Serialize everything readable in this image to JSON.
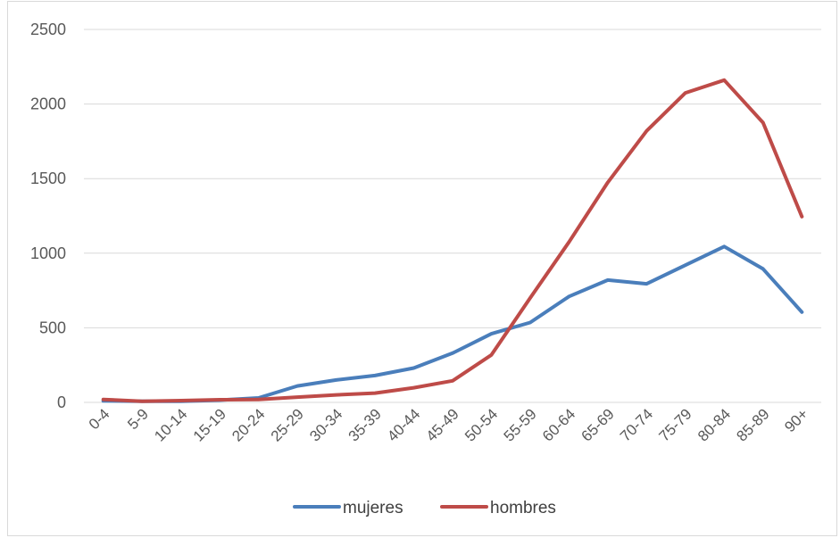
{
  "chart_data": {
    "type": "line",
    "title": "",
    "xlabel": "",
    "ylabel": "",
    "ylim": [
      0,
      2500
    ],
    "yticks": [
      0,
      500,
      1000,
      1500,
      2000,
      2500
    ],
    "grid": true,
    "legend_position": "bottom",
    "categories": [
      "0-4",
      "5-9",
      "10-14",
      "15-19",
      "20-24",
      "25-29",
      "30-34",
      "35-39",
      "40-44",
      "45-49",
      "50-54",
      "55-59",
      "60-64",
      "65-69",
      "70-74",
      "75-79",
      "80-84",
      "85-89",
      "90+"
    ],
    "series": [
      {
        "name": "mujeres",
        "color": "#4a7ebb",
        "values": [
          10,
          8,
          8,
          15,
          30,
          110,
          150,
          180,
          230,
          330,
          460,
          535,
          710,
          820,
          795,
          920,
          1045,
          895,
          605
        ]
      },
      {
        "name": "hombres",
        "color": "#be4b48",
        "values": [
          20,
          8,
          12,
          18,
          20,
          35,
          50,
          62,
          98,
          145,
          318,
          700,
          1075,
          1475,
          1820,
          2075,
          2160,
          1875,
          1245
        ]
      }
    ]
  }
}
